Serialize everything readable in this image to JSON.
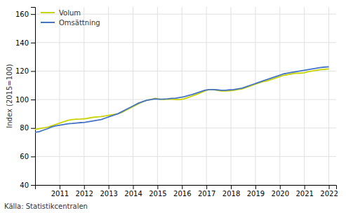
{
  "chart_data": {
    "type": "line",
    "ylabel": "Index (2015=100)",
    "source": "Källa: Statistikcentralen",
    "x": [
      2010,
      2010.169014,
      2010.338028,
      2010.507042,
      2010.676056,
      2010.84507,
      2011.014085,
      2011.183099,
      2011.352113,
      2011.521127,
      2011.690141,
      2011.859155,
      2012.028169,
      2012.197183,
      2012.366197,
      2012.535211,
      2012.704225,
      2012.873239,
      2013.042254,
      2013.211268,
      2013.380282,
      2013.549296,
      2013.71831,
      2013.887324,
      2014.056338,
      2014.225352,
      2014.394366,
      2014.56338,
      2014.732394,
      2014.901408,
      2015.070423,
      2015.239437,
      2015.408451,
      2015.577465,
      2015.746479,
      2015.915493,
      2016.084507,
      2016.253521,
      2016.422535,
      2016.591549,
      2016.760563,
      2016.929577,
      2017.098592,
      2017.267606,
      2017.43662,
      2017.605634,
      2017.774648,
      2017.943662,
      2018.112676,
      2018.28169,
      2018.450704,
      2018.619718,
      2018.788732,
      2018.957746,
      2019.126761,
      2019.295775,
      2019.464789,
      2019.633803,
      2019.802817,
      2019.971831,
      2020.140845,
      2020.309859,
      2020.478873,
      2020.647887,
      2020.816901,
      2020.985915,
      2021.15493,
      2021.323944,
      2021.492958,
      2021.661972,
      2021.830986,
      2022
    ],
    "series": [
      {
        "name": "Volum",
        "color": "#c8d400",
        "values": [
          79.0,
          79.5,
          80.0,
          80.5,
          81.5,
          82.5,
          83.5,
          84.5,
          85.5,
          86.0,
          86.2,
          86.3,
          86.5,
          87.0,
          87.5,
          87.8,
          88.0,
          88.5,
          89.0,
          89.5,
          90.0,
          91.0,
          92.5,
          94.0,
          95.5,
          97.0,
          98.5,
          99.5,
          100.0,
          100.8,
          100.3,
          100.0,
          100.2,
          100.4,
          100.0,
          100.0,
          100.5,
          101.5,
          102.5,
          103.5,
          104.8,
          106.0,
          107.0,
          107.0,
          106.5,
          106.0,
          106.0,
          106.2,
          106.5,
          107.0,
          107.5,
          108.5,
          109.5,
          110.5,
          111.5,
          112.5,
          113.0,
          114.0,
          115.0,
          116.0,
          117.0,
          117.5,
          118.0,
          118.5,
          118.5,
          118.8,
          119.5,
          120.0,
          120.5,
          121.0,
          121.2,
          121.5
        ]
      },
      {
        "name": "Omsättning",
        "color": "#4472c4",
        "values": [
          77.0,
          77.5,
          78.5,
          79.5,
          80.8,
          81.5,
          82.0,
          82.5,
          83.0,
          83.2,
          83.5,
          83.8,
          84.0,
          84.5,
          85.0,
          85.5,
          86.0,
          87.0,
          88.0,
          89.0,
          90.0,
          91.5,
          93.0,
          94.5,
          96.0,
          97.5,
          98.5,
          99.5,
          100.0,
          100.5,
          100.2,
          100.3,
          100.5,
          100.8,
          101.0,
          101.5,
          102.0,
          102.8,
          103.5,
          104.5,
          105.5,
          106.5,
          107.0,
          107.0,
          106.8,
          106.5,
          106.5,
          106.8,
          107.0,
          107.5,
          108.0,
          109.0,
          110.0,
          111.0,
          112.0,
          113.0,
          114.0,
          115.0,
          116.0,
          117.0,
          118.0,
          118.5,
          119.0,
          119.5,
          120.0,
          120.5,
          121.0,
          121.5,
          122.0,
          122.5,
          122.8,
          123.0
        ]
      }
    ],
    "xlim": [
      2010.0,
      2022.3
    ],
    "xticks": [
      2011,
      2012,
      2013,
      2014,
      2015,
      2016,
      2017,
      2018,
      2019,
      2020,
      2021,
      2022
    ],
    "ylim": [
      40,
      165
    ],
    "yticks": [
      40,
      60,
      80,
      100,
      120,
      140,
      160
    ],
    "grid": true,
    "legend": "upper left"
  }
}
